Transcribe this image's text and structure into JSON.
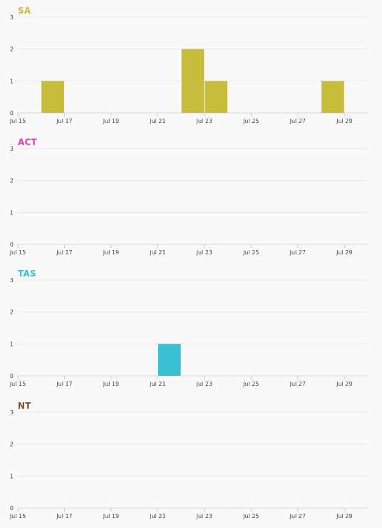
{
  "chart_data": [
    {
      "type": "bar",
      "title": "SA",
      "color": "#c8bd3b",
      "x_range": [
        "2020-07-15",
        "2020-07-30"
      ],
      "x_ticks": [
        "Jul 15",
        "Jul 17",
        "Jul 19",
        "Jul 21",
        "Jul 23",
        "Jul 25",
        "Jul 27",
        "Jul 29"
      ],
      "ylim": [
        0,
        3
      ],
      "y_ticks": [
        "0",
        "1",
        "2",
        "3"
      ],
      "grid": true,
      "series": [
        {
          "values": [
            {
              "date": "2020-07-16",
              "value": 1
            },
            {
              "date": "2020-07-22",
              "value": 2
            },
            {
              "date": "2020-07-23",
              "value": 1
            },
            {
              "date": "2020-07-28",
              "value": 1
            }
          ]
        }
      ]
    },
    {
      "type": "bar",
      "title": "ACT",
      "color": "#e0409c",
      "x_range": [
        "2020-07-15",
        "2020-07-30"
      ],
      "x_ticks": [
        "Jul 15",
        "Jul 17",
        "Jul 19",
        "Jul 21",
        "Jul 23",
        "Jul 25",
        "Jul 27",
        "Jul 29"
      ],
      "ylim": [
        0,
        3
      ],
      "y_ticks": [
        "0",
        "1",
        "2",
        "3"
      ],
      "grid": true,
      "series": [
        {
          "values": []
        }
      ]
    },
    {
      "type": "bar",
      "title": "TAS",
      "color": "#3bbfd2",
      "x_range": [
        "2020-07-15",
        "2020-07-30"
      ],
      "x_ticks": [
        "Jul 15",
        "Jul 17",
        "Jul 19",
        "Jul 21",
        "Jul 23",
        "Jul 25",
        "Jul 27",
        "Jul 29"
      ],
      "ylim": [
        0,
        3
      ],
      "y_ticks": [
        "0",
        "1",
        "2",
        "3"
      ],
      "grid": true,
      "series": [
        {
          "values": [
            {
              "date": "2020-07-21",
              "value": 1
            }
          ]
        }
      ]
    },
    {
      "type": "bar",
      "title": "NT",
      "color": "#7a5230",
      "x_range": [
        "2020-07-15",
        "2020-07-30"
      ],
      "x_ticks": [
        "Jul 15",
        "Jul 17",
        "Jul 19",
        "Jul 21",
        "Jul 23",
        "Jul 25",
        "Jul 27",
        "Jul 29"
      ],
      "ylim": [
        0,
        3
      ],
      "y_ticks": [
        "0",
        "1",
        "2",
        "3"
      ],
      "grid": true,
      "series": [
        {
          "values": []
        }
      ]
    }
  ]
}
